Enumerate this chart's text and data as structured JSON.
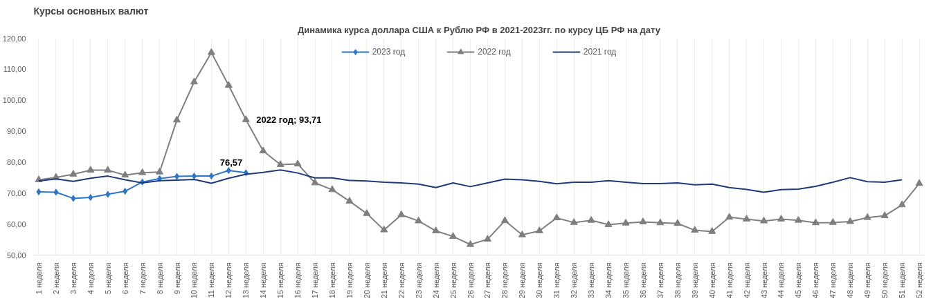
{
  "chart_data": {
    "type": "line",
    "title": "Динамика курса доллара США к Рублю РФ в 2021-2023гг. по курсу ЦБ РФ на дату",
    "annotations": [
      "Курсы основных валют"
    ],
    "categories": [
      "1 неделя",
      "2 неделя",
      "3 неделя",
      "4 неделя",
      "5 неделя",
      "6 неделя",
      "7 неделя",
      "8 неделя",
      "9 неделя",
      "10 неделя",
      "11 неделя",
      "12 неделя",
      "13 неделя",
      "14 неделя",
      "15 неделя",
      "16 неделя",
      "17 неделя",
      "18 неделя",
      "19 неделя",
      "20 неделя",
      "21 неделя",
      "22 неделя",
      "23 неделя",
      "24 неделя",
      "25 неделя",
      "26 неделя",
      "27 неделя",
      "28 неделя",
      "29 неделя",
      "30 неделя",
      "31 неделя",
      "32 неделя",
      "33 неделя",
      "34 неделя",
      "35 неделя",
      "36 неделя",
      "37 неделя",
      "38 неделя",
      "39 неделя",
      "40 неделя",
      "41 неделя",
      "42 неделя",
      "43 неделя",
      "44 неделя",
      "45 неделя",
      "46 неделя",
      "47 неделя",
      "48 неделя",
      "49 неделя",
      "50 неделя",
      "51 неделя",
      "52 неделя"
    ],
    "series": [
      {
        "name": "2023 год",
        "color": "#2e75c6",
        "marker": "diamond",
        "values": [
          70.4,
          70.3,
          68.3,
          68.6,
          69.6,
          70.6,
          73.6,
          74.7,
          75.4,
          75.5,
          75.5,
          77.3,
          76.57,
          null,
          null,
          null,
          null,
          null,
          null,
          null,
          null,
          null,
          null,
          null,
          null,
          null,
          null,
          null,
          null,
          null,
          null,
          null,
          null,
          null,
          null,
          null,
          null,
          null,
          null,
          null,
          null,
          null,
          null,
          null,
          null,
          null,
          null,
          null,
          null,
          null,
          null,
          null
        ],
        "value_labels": [
          null,
          null,
          null,
          null,
          null,
          null,
          null,
          null,
          null,
          null,
          null,
          null,
          "76,57",
          null,
          null,
          null,
          null,
          null,
          null,
          null,
          null,
          null,
          null,
          null,
          null,
          null,
          null,
          null,
          null,
          null,
          null,
          null,
          null,
          null,
          null,
          null,
          null,
          null,
          null,
          null,
          null,
          null,
          null,
          null,
          null,
          null,
          null,
          null,
          null,
          null,
          null,
          null
        ]
      },
      {
        "name": "2022 год",
        "color": "#7f7f7f",
        "marker": "triangle",
        "values": [
          74.3,
          75.1,
          76.1,
          77.4,
          77.4,
          75.8,
          76.6,
          76.8,
          93.6,
          105.9,
          115.4,
          104.8,
          93.71,
          83.6,
          79.2,
          79.4,
          73.3,
          71.1,
          67.4,
          63.4,
          58.1,
          63.0,
          61.0,
          57.8,
          56.0,
          53.4,
          55.1,
          61.1,
          56.5,
          57.8,
          62.0,
          60.5,
          61.2,
          59.8,
          60.3,
          60.7,
          60.4,
          60.2,
          58.0,
          57.6,
          62.2,
          61.6,
          61.0,
          61.6,
          61.2,
          60.4,
          60.5,
          60.8,
          62.1,
          62.7,
          66.2,
          73.1
        ],
        "value_labels": [
          null,
          null,
          null,
          null,
          null,
          null,
          null,
          null,
          null,
          null,
          null,
          null,
          "2022 год; 93,71",
          null,
          null,
          null,
          null,
          null,
          null,
          null,
          null,
          null,
          null,
          null,
          null,
          null,
          null,
          null,
          null,
          null,
          null,
          null,
          null,
          null,
          null,
          null,
          null,
          null,
          null,
          null,
          null,
          null,
          null,
          null,
          null,
          null,
          null,
          null,
          null,
          null,
          null,
          null
        ]
      },
      {
        "name": "2021 год",
        "color": "#1f3a78",
        "marker": "none",
        "values": [
          73.9,
          74.6,
          73.8,
          74.8,
          75.5,
          74.3,
          73.3,
          74.0,
          74.2,
          74.4,
          73.2,
          74.8,
          76.1,
          76.7,
          77.5,
          76.5,
          74.9,
          74.9,
          74.1,
          73.9,
          73.5,
          73.3,
          72.9,
          71.8,
          73.3,
          72.1,
          73.3,
          74.5,
          74.3,
          73.8,
          73.0,
          73.5,
          73.5,
          74.0,
          73.5,
          73.1,
          73.1,
          73.3,
          72.7,
          72.9,
          71.8,
          71.2,
          70.3,
          71.1,
          71.3,
          72.2,
          73.5,
          75.0,
          73.7,
          73.5,
          74.3,
          null
        ]
      }
    ],
    "ylim": [
      50,
      120
    ],
    "yticks": [
      {
        "value": 50,
        "label": "50,00"
      },
      {
        "value": 60,
        "label": "60,00"
      },
      {
        "value": 70,
        "label": "70,00"
      },
      {
        "value": 80,
        "label": "80,00"
      },
      {
        "value": 90,
        "label": "90,00"
      },
      {
        "value": 100,
        "label": "100,00"
      },
      {
        "value": 110,
        "label": "110,00"
      },
      {
        "value": 120,
        "label": "120,00"
      }
    ],
    "grid": "x",
    "legend": "top",
    "line_style": "solid"
  }
}
